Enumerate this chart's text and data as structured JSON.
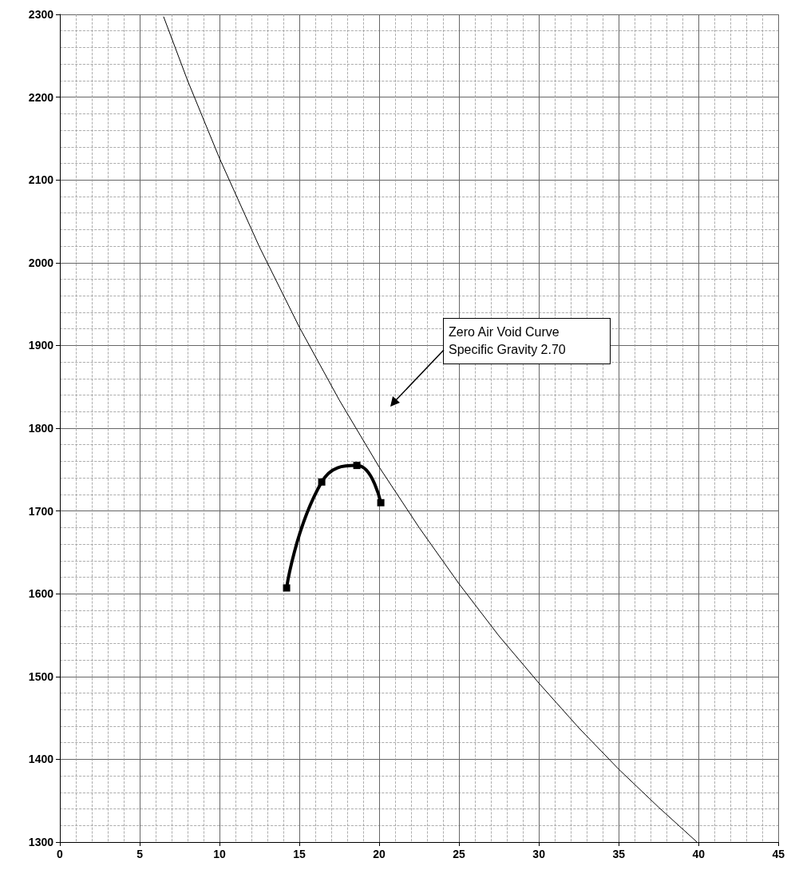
{
  "chart_data": {
    "type": "line",
    "annotations": [
      "Zero Air Void Curve\nSpecific Gravity 2.70"
    ],
    "series": [
      {
        "color": "#000000",
        "marker": "none",
        "x": [
          6.5,
          8,
          10,
          12.5,
          15,
          17.5,
          20,
          22.5,
          25,
          27.5,
          30,
          32.5,
          35,
          37.5,
          39.9
        ],
        "values": [
          2297,
          2220,
          2126,
          2019,
          1922,
          1834,
          1753,
          1680,
          1612,
          1549,
          1492,
          1438,
          1388,
          1342,
          1300
        ]
      },
      {
        "color": "#000000",
        "marker": "square",
        "x": [
          14.2,
          16.4,
          18.6,
          20.1
        ],
        "values": [
          1607,
          1735,
          1755,
          1710
        ]
      }
    ],
    "xlim": [
      0,
      45
    ],
    "xticks": [
      0,
      5,
      10,
      15,
      20,
      25,
      30,
      35,
      40,
      45
    ],
    "ylim": [
      1300,
      2300
    ],
    "yticks": [
      1300,
      1400,
      1500,
      1600,
      1700,
      1800,
      1900,
      2000,
      2100,
      2200,
      2300
    ],
    "grid": true
  }
}
